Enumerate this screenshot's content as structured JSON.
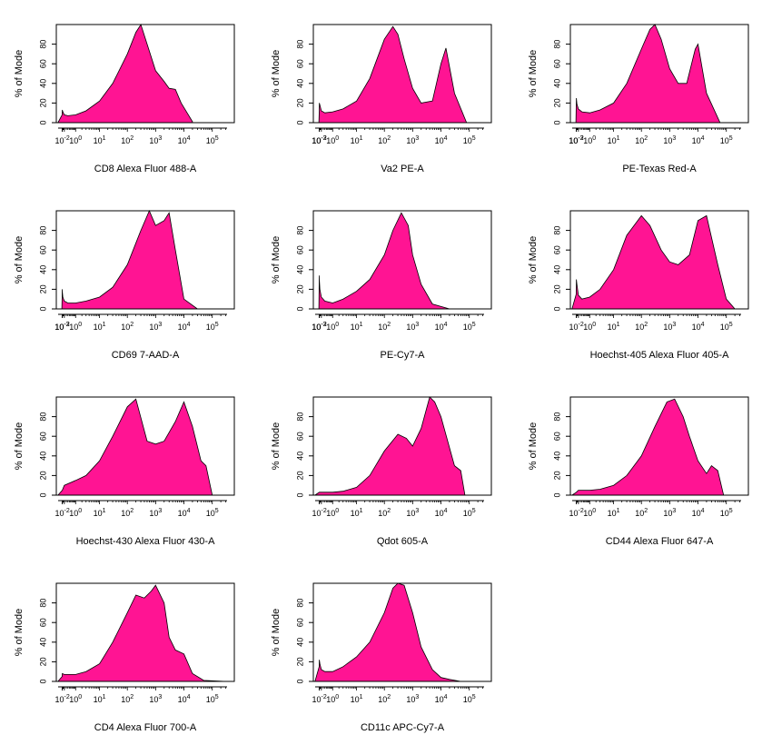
{
  "figure": {
    "ylabel": "% of Mode",
    "fill_color": "#FF1493",
    "y_ticks": [
      0,
      20,
      40,
      60,
      80
    ]
  },
  "chart_data": [
    {
      "type": "area",
      "title": "",
      "xlabel": "CD8 Alexa Fluor 488-A",
      "ylabel": "% of Mode",
      "x_scale": "logicle",
      "x_ticks": [
        "10^-2",
        "10^0",
        "10^1",
        "10^2",
        "10^3",
        "10^4",
        "10^5"
      ],
      "ylim": [
        0,
        100
      ],
      "series": [
        {
          "x": [
            "-0.2",
            "0.003",
            "0.01",
            "0.03",
            "0.1",
            "0.3",
            "1",
            "3",
            "10",
            "30",
            "100",
            "200",
            "300",
            "500",
            "1000",
            "2000",
            "3000",
            "5000",
            "8000",
            "20000"
          ],
          "y": [
            0,
            8,
            13,
            11,
            8,
            7,
            8,
            12,
            22,
            40,
            70,
            92,
            100,
            80,
            53,
            42,
            35,
            34,
            20,
            1
          ]
        }
      ]
    },
    {
      "type": "area",
      "title": "",
      "xlabel": "Va2 PE-A",
      "ylabel": "% of Mode",
      "x_scale": "logicle",
      "x_ticks": [
        "10^-3",
        "10^-2",
        "10^0",
        "10^1",
        "10^2",
        "10^3",
        "10^4",
        "10^5"
      ],
      "ylim": [
        0,
        100
      ],
      "series": [
        {
          "x": [
            "-0.01",
            "0.005",
            "0.01",
            "0.03",
            "0.1",
            "0.3",
            "1",
            "3",
            "10",
            "30",
            "100",
            "200",
            "300",
            "500",
            "1000",
            "2000",
            "5000",
            "10000",
            "15000",
            "30000",
            "80000"
          ],
          "y": [
            0,
            12,
            20,
            18,
            12,
            10,
            11,
            14,
            22,
            45,
            85,
            98,
            90,
            65,
            35,
            20,
            22,
            60,
            76,
            30,
            0
          ]
        }
      ]
    },
    {
      "type": "area",
      "title": "",
      "xlabel": "PE-Texas Red-A",
      "ylabel": "% of Mode",
      "x_scale": "logicle",
      "x_ticks": [
        "10^-3",
        "10^-2",
        "10^0",
        "10^1",
        "10^2",
        "10^3",
        "10^4",
        "10^5"
      ],
      "ylim": [
        0,
        100
      ],
      "series": [
        {
          "x": [
            "-0.01",
            "0.003",
            "0.01",
            "0.03",
            "0.1",
            "0.3",
            "1",
            "3",
            "10",
            "30",
            "100",
            "200",
            "300",
            "500",
            "1000",
            "2000",
            "4000",
            "8000",
            "10000",
            "20000",
            "60000"
          ],
          "y": [
            0,
            15,
            25,
            19,
            14,
            11,
            10,
            13,
            20,
            40,
            75,
            95,
            100,
            85,
            55,
            40,
            40,
            75,
            80,
            30,
            0
          ]
        }
      ]
    },
    {
      "type": "area",
      "title": "",
      "xlabel": "CD69 7-AAD-A",
      "ylabel": "% of Mode",
      "x_scale": "logicle",
      "x_ticks": [
        "10^-3",
        "10^-2",
        "10^0",
        "10^1",
        "10^2",
        "10^3",
        "10^4",
        "10^5"
      ],
      "ylim": [
        0,
        100
      ],
      "series": [
        {
          "x": [
            "-0.01",
            "0.002",
            "0.005",
            "0.01",
            "0.03",
            "0.1",
            "0.3",
            "1",
            "3",
            "10",
            "30",
            "100",
            "300",
            "600",
            "1000",
            "2000",
            "3000",
            "5000",
            "10000",
            "30000"
          ],
          "y": [
            0,
            12,
            20,
            18,
            12,
            8,
            6,
            6,
            8,
            12,
            22,
            45,
            80,
            100,
            85,
            90,
            98,
            60,
            10,
            0
          ]
        }
      ]
    },
    {
      "type": "area",
      "title": "",
      "xlabel": "PE-Cy7-A",
      "ylabel": "% of Mode",
      "x_scale": "logicle",
      "x_ticks": [
        "10^-3",
        "10^-2",
        "10^0",
        "10^1",
        "10^2",
        "10^3",
        "10^4",
        "10^5"
      ],
      "ylim": [
        0,
        100
      ],
      "series": [
        {
          "x": [
            "-0.01",
            "0.003",
            "0.006",
            "0.01",
            "0.03",
            "0.1",
            "0.3",
            "1",
            "3",
            "10",
            "30",
            "100",
            "200",
            "400",
            "700",
            "1000",
            "2000",
            "5000",
            "20000"
          ],
          "y": [
            0,
            25,
            34,
            30,
            20,
            12,
            8,
            6,
            10,
            18,
            30,
            55,
            80,
            98,
            85,
            55,
            25,
            5,
            0
          ]
        }
      ]
    },
    {
      "type": "area",
      "title": "",
      "xlabel": "Hoechst-405 Alexa Fluor 405-A",
      "ylabel": "% of Mode",
      "x_scale": "logicle",
      "x_ticks": [
        "10^-2",
        "10^0",
        "10^1",
        "10^2",
        "10^3",
        "10^4",
        "10^5"
      ],
      "ylim": [
        0,
        100
      ],
      "series": [
        {
          "x": [
            "-0.2",
            "0.003",
            "0.01",
            "0.03",
            "0.1",
            "0.3",
            "1",
            "3",
            "10",
            "30",
            "100",
            "200",
            "500",
            "1000",
            "2000",
            "5000",
            "10000",
            "20000",
            "50000",
            "100000",
            "200000"
          ],
          "y": [
            0,
            15,
            30,
            25,
            14,
            10,
            12,
            20,
            40,
            75,
            95,
            85,
            60,
            48,
            45,
            55,
            90,
            95,
            45,
            10,
            0
          ]
        }
      ]
    },
    {
      "type": "area",
      "title": "",
      "xlabel": "Hoechst-430 Alexa Fluor 430-A",
      "ylabel": "% of Mode",
      "x_scale": "logicle",
      "x_ticks": [
        "10^-2",
        "10^0",
        "10^1",
        "10^2",
        "10^3",
        "10^4",
        "10^5"
      ],
      "ylim": [
        0,
        100
      ],
      "series": [
        {
          "x": [
            "-0.2",
            "0.01",
            "0.1",
            "1",
            "3",
            "10",
            "30",
            "100",
            "200",
            "500",
            "1000",
            "2000",
            "5000",
            "10000",
            "20000",
            "40000",
            "60000",
            "100000"
          ],
          "y": [
            0,
            5,
            10,
            15,
            20,
            35,
            60,
            90,
            98,
            55,
            52,
            55,
            75,
            95,
            70,
            35,
            30,
            0
          ]
        }
      ]
    },
    {
      "type": "area",
      "title": "",
      "xlabel": "Qdot 605-A",
      "ylabel": "% of Mode",
      "x_scale": "logicle",
      "x_ticks": [
        "10^-2",
        "10^0",
        "10^1",
        "10^2",
        "10^3",
        "10^4",
        "10^5"
      ],
      "ylim": [
        0,
        100
      ],
      "series": [
        {
          "x": [
            "-0.2",
            "0.01",
            "0.1",
            "1",
            "3",
            "10",
            "30",
            "100",
            "300",
            "600",
            "1000",
            "2000",
            "4000",
            "6000",
            "10000",
            "30000",
            "50000",
            "70000"
          ],
          "y": [
            0,
            3,
            3,
            3,
            4,
            8,
            20,
            45,
            62,
            58,
            50,
            68,
            100,
            95,
            80,
            30,
            25,
            0
          ]
        }
      ]
    },
    {
      "type": "area",
      "title": "",
      "xlabel": "CD44 Alexa Fluor 647-A",
      "ylabel": "% of Mode",
      "x_scale": "logicle",
      "x_ticks": [
        "10^-2",
        "10^0",
        "10^1",
        "10^2",
        "10^3",
        "10^4",
        "10^5"
      ],
      "ylim": [
        0,
        100
      ],
      "series": [
        {
          "x": [
            "-0.2",
            "0.01",
            "0.1",
            "1",
            "3",
            "10",
            "30",
            "100",
            "300",
            "800",
            "1500",
            "3000",
            "5000",
            "10000",
            "20000",
            "30000",
            "50000",
            "80000"
          ],
          "y": [
            0,
            3,
            5,
            5,
            6,
            10,
            20,
            40,
            70,
            95,
            98,
            80,
            60,
            35,
            22,
            30,
            25,
            0
          ]
        }
      ]
    },
    {
      "type": "area",
      "title": "",
      "xlabel": "CD4 Alexa Fluor 700-A",
      "ylabel": "% of Mode",
      "x_scale": "logicle",
      "x_ticks": [
        "10^-2",
        "10^0",
        "10^1",
        "10^2",
        "10^3",
        "10^4",
        "10^5"
      ],
      "ylim": [
        0,
        100
      ],
      "series": [
        {
          "x": [
            "-0.2",
            "0.003",
            "0.01",
            "0.1",
            "1",
            "3",
            "10",
            "30",
            "100",
            "200",
            "400",
            "700",
            "1000",
            "2000",
            "3000",
            "5000",
            "10000",
            "20000",
            "50000",
            "300000"
          ],
          "y": [
            0,
            5,
            8,
            7,
            7,
            10,
            18,
            40,
            70,
            88,
            85,
            92,
            98,
            80,
            45,
            32,
            28,
            8,
            1,
            0
          ]
        }
      ]
    },
    {
      "type": "area",
      "title": "",
      "xlabel": "CD11c APC-Cy7-A",
      "ylabel": "% of Mode",
      "x_scale": "logicle",
      "x_ticks": [
        "10^-2",
        "10^0",
        "10^1",
        "10^2",
        "10^3",
        "10^4",
        "10^5"
      ],
      "ylim": [
        0,
        100
      ],
      "series": [
        {
          "x": [
            "-0.2",
            "0.003",
            "0.01",
            "0.03",
            "0.1",
            "0.3",
            "1",
            "3",
            "10",
            "30",
            "100",
            "200",
            "300",
            "500",
            "1000",
            "2000",
            "5000",
            "10000",
            "20000",
            "50000"
          ],
          "y": [
            0,
            15,
            22,
            18,
            12,
            10,
            10,
            15,
            25,
            40,
            70,
            95,
            100,
            98,
            70,
            35,
            12,
            4,
            2,
            0
          ]
        }
      ]
    }
  ]
}
